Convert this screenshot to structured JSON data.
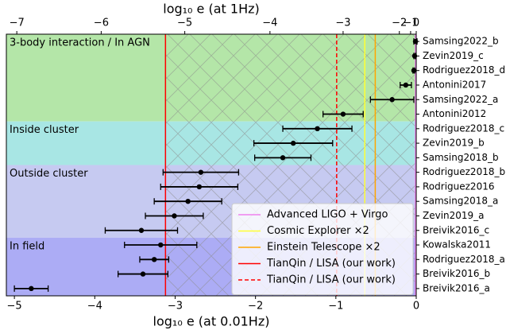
{
  "chart_data": {
    "type": "errorbar",
    "xlabel": "log₁₀ e (at 0.01Hz)",
    "x2label": "log₁₀ e (at 1Hz)",
    "xlim": [
      -5.1,
      0
    ],
    "xticks": [
      {
        "value": -5,
        "label": "−5"
      },
      {
        "value": -4,
        "label": "−4"
      },
      {
        "value": -3,
        "label": "−3"
      },
      {
        "value": -2,
        "label": "−2"
      },
      {
        "value": -1,
        "label": "−1"
      },
      0
    ],
    "x2ticks": [
      {
        "value": -4.97,
        "label": "−7"
      },
      {
        "value": -3.92,
        "label": "−6"
      },
      {
        "value": -2.88,
        "label": "−5"
      },
      {
        "value": -1.82,
        "label": "−4"
      },
      {
        "value": -0.91,
        "label": "−3"
      },
      {
        "value": -0.21,
        "label": "−2"
      },
      {
        "value": -0.07,
        "label": "−1"
      },
      {
        "value": 0,
        "label": "0"
      }
    ],
    "categories": [
      "Samsing2022_b",
      "Zevin2019_c",
      "Rodriguez2018_d",
      "Antonini2017",
      "Samsing2022_a",
      "Antonini2012",
      "Rodriguez2018_c",
      "Zevin2019_b",
      "Samsing2018_b",
      "Rodriguez2018_b",
      "Rodriguez2016",
      "Samsing2018_a",
      "Zevin2019_a",
      "Breivik2016_c",
      "Kowalska2011",
      "Rodriguez2018_a",
      "Breivik2016_b",
      "Breivik2016_a"
    ],
    "values": [
      -0.01,
      -0.02,
      -0.03,
      -0.13,
      -0.3,
      -0.91,
      -1.23,
      -1.53,
      -1.66,
      -2.68,
      -2.7,
      -2.84,
      -3.01,
      -3.42,
      -3.18,
      -3.26,
      -3.4,
      -4.79
    ],
    "errors": [
      0.02,
      0.01,
      0.01,
      0.07,
      0.27,
      0.25,
      0.43,
      0.49,
      0.35,
      0.47,
      0.48,
      0.42,
      0.36,
      0.45,
      0.45,
      0.18,
      0.31,
      0.21
    ],
    "color": "#000000",
    "regions": [
      {
        "label": "3-body interaction / In AGN",
        "color": "#b4e6a8",
        "rows": [
          0,
          5
        ]
      },
      {
        "label": "Inside cluster",
        "color": "#a8e6e4",
        "rows": [
          6,
          8
        ]
      },
      {
        "label": "Outside cluster",
        "color": "#c6caf1",
        "rows": [
          9,
          13
        ]
      },
      {
        "label": "In field",
        "color": "#acacf5",
        "rows": [
          14,
          17
        ]
      }
    ],
    "hatch_from": -3.12,
    "vlines": [
      {
        "name": "Advanced LIGO + Virgo",
        "color": "#ee82ee",
        "x": -0.01,
        "dashed": false
      },
      {
        "name": "Cosmic Explorer ×2",
        "color": "#ffff33",
        "x": -0.64,
        "dashed": false
      },
      {
        "name": "Einstein Telescope ×2",
        "color": "#ffa500",
        "x": -0.51,
        "dashed": false
      },
      {
        "name": "TianQin / LISA (our work)",
        "color": "#ff0000",
        "x": -3.12,
        "dashed": false
      },
      {
        "name": "TianQin / LISA (our work)",
        "color": "#ff0000",
        "x": -0.99,
        "dashed": true
      }
    ]
  }
}
